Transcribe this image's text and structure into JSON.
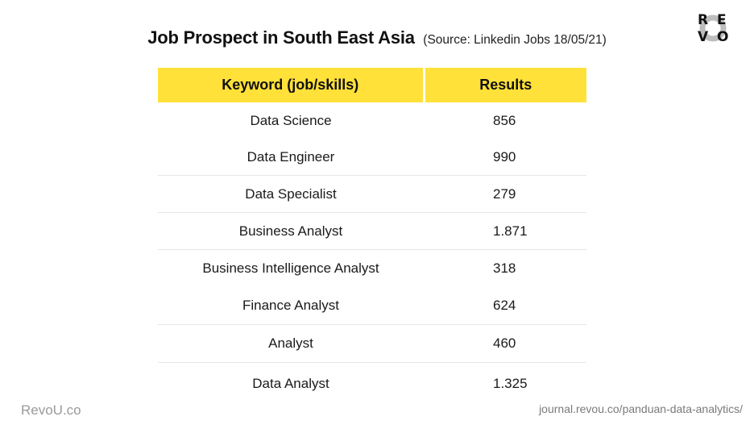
{
  "header": {
    "title": "Job Prospect in South East Asia",
    "source": "(Source: Linkedin Jobs 18/05/21)"
  },
  "logo": {
    "letters": [
      "R",
      "E",
      "V",
      "O"
    ],
    "ring_color": "#bdbdbd"
  },
  "table": {
    "columns": [
      "Keyword (job/skills)",
      "Results"
    ],
    "header_color": "#ffe13a",
    "rows": [
      {
        "keyword": "Data Science",
        "results": "856"
      },
      {
        "keyword": "Data Engineer",
        "results": "990"
      },
      {
        "keyword": "Data Specialist",
        "results": "279"
      },
      {
        "keyword": "Business Analyst",
        "results": "1.871"
      },
      {
        "keyword": "Business Intelligence Analyst",
        "results": "318"
      },
      {
        "keyword": "Finance Analyst",
        "results": "624"
      },
      {
        "keyword": "Analyst",
        "results": "460"
      },
      {
        "keyword": "Data Analyst",
        "results": "1.325"
      }
    ]
  },
  "footer": {
    "left": "RevoU.co",
    "right": "journal.revou.co/panduan-data-analytics/"
  }
}
